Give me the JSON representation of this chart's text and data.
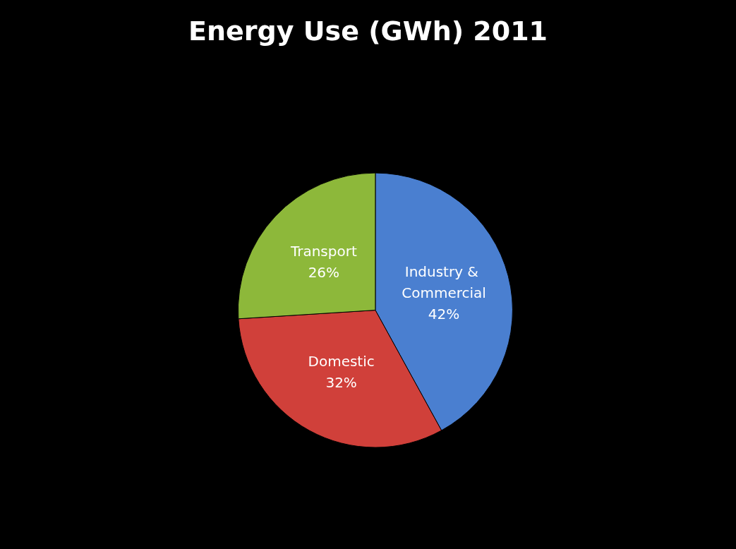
{
  "chart_data": {
    "type": "pie",
    "title": "Energy Use (GWh) 2011",
    "categories": [
      "Industry & Commercial",
      "Domestic",
      "Transport"
    ],
    "values": [
      42,
      32,
      26
    ],
    "value_labels": [
      "42%",
      "32%",
      "26%"
    ],
    "colors": [
      "#4a7fd0",
      "#d0403a",
      "#8db83a"
    ]
  }
}
